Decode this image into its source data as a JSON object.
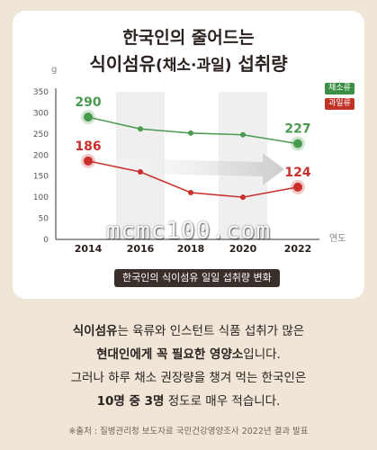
{
  "title_line1": "한국인의 줄어드는",
  "title_line2": "식이섬유",
  "title_line2_paren": "(채소·과일)",
  "title_line2_tail": " 섭취량",
  "watermark": "mcmc100.com",
  "caption": "한국인의 식이섬유 일일 섭취량 변화",
  "body": {
    "l1_bold": "식이섬유",
    "l1_rest": "는 육류와 인스턴트 식품 섭취가 많은",
    "l2_bold": "현대인에게 꼭 필요한 영양소",
    "l2_rest": "입니다.",
    "l3": "그러나 하루 채소 권장량을 챙겨 먹는 한국인은",
    "l4_bold": "10명 중 3명",
    "l4_rest": " 정도로 매우 적습니다."
  },
  "source": "※출처 : 질병관리청 보도자료 국민건강영양조사 2022년 결과 발표",
  "colors": {
    "veg": "#4a9a4f",
    "fruit": "#c9302c",
    "band": "#efefef",
    "arrow": "#d8d8d8"
  },
  "chart_data": {
    "type": "line",
    "x": [
      "2014",
      "2016",
      "2018",
      "2020",
      "2022"
    ],
    "xlabel": "연도",
    "ylabel": "g",
    "ylim": [
      0,
      350
    ],
    "yticks": [
      "0",
      "50",
      "100",
      "150",
      "200",
      "250",
      "300",
      "350"
    ],
    "grid": false,
    "legend": "top-right",
    "series": [
      {
        "name": "채소류",
        "values": [
          290,
          262,
          252,
          248,
          227
        ],
        "labels": [
          "290",
          "",
          "",
          "",
          "227"
        ],
        "color": "#4a9a4f"
      },
      {
        "name": "과일류",
        "values": [
          186,
          160,
          111,
          100,
          124
        ],
        "labels": [
          "186",
          "",
          "",
          "",
          "124"
        ],
        "color": "#c9302c"
      }
    ]
  }
}
